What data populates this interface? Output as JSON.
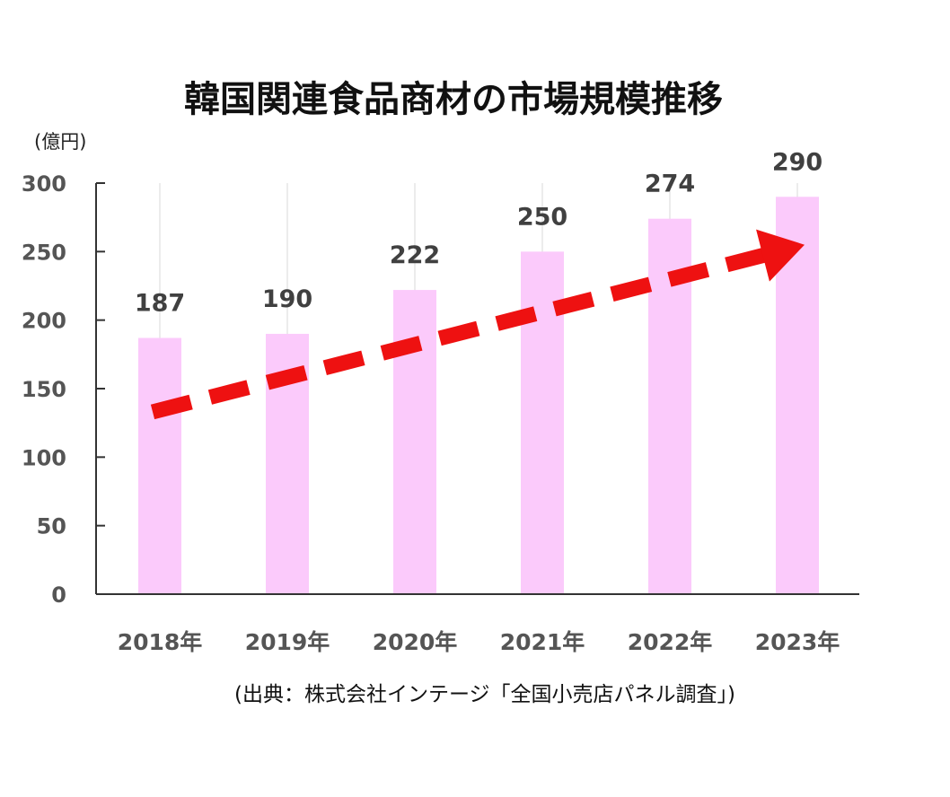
{
  "chart_data": {
    "type": "bar",
    "title": "韓国関連食品商材の市場規模推移",
    "ylabel": "(億円)",
    "xlabel": "",
    "categories": [
      "2018年",
      "2019年",
      "2020年",
      "2021年",
      "2022年",
      "2023年"
    ],
    "values": [
      187,
      190,
      222,
      250,
      274,
      290
    ],
    "ylim": [
      0,
      300
    ],
    "yticks": [
      0,
      50,
      100,
      150,
      200,
      250,
      300
    ],
    "grid": "vertical",
    "annotations": [
      {
        "type": "trend-arrow",
        "from": {
          "x": "2018年",
          "y": 133
        },
        "to": {
          "x": "2023年",
          "y": 255
        },
        "style": "dashed"
      }
    ],
    "source": "(出典：株式会社インテージ「全国小売店パネル調査」)"
  },
  "colors": {
    "bar": "#fbcafb",
    "arrow": "#ee1111",
    "axis": "#333333",
    "grid": "#e6e6e6"
  }
}
